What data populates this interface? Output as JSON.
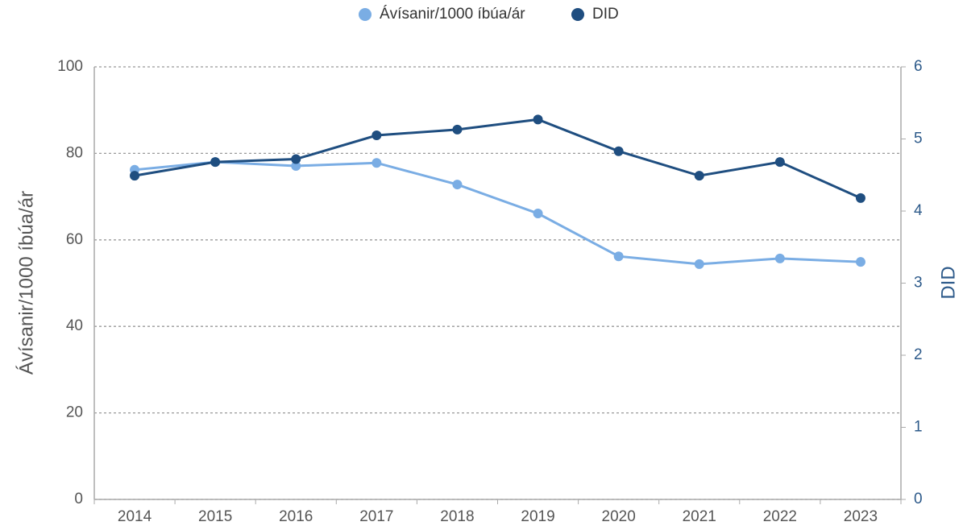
{
  "chart_data": {
    "type": "line",
    "categories": [
      "2014",
      "2015",
      "2016",
      "2017",
      "2018",
      "2019",
      "2020",
      "2021",
      "2022",
      "2023"
    ],
    "series": [
      {
        "name": "Ávísanir/1000 íbúa/ár",
        "color": "#7aade4",
        "values": [
          76.2,
          78.0,
          77.1,
          77.8,
          72.8,
          66.1,
          56.2,
          54.4,
          55.7,
          54.9
        ]
      },
      {
        "name": "DID",
        "color": "#1f4e80",
        "axis": "y2",
        "values": [
          4.49,
          4.68,
          4.72,
          5.05,
          5.13,
          5.27,
          4.83,
          4.49,
          4.68,
          4.18
        ]
      }
    ],
    "ylabel": "Ávísanir/1000 íbúa/ár",
    "y2label": "DID",
    "ylim": [
      0,
      100
    ],
    "yticks": [
      0,
      20,
      40,
      60,
      80,
      100
    ],
    "y2lim": [
      0,
      6
    ],
    "y2ticks": [
      0,
      1,
      2,
      3,
      4,
      5,
      6
    ],
    "grid": true,
    "legend": "top"
  }
}
